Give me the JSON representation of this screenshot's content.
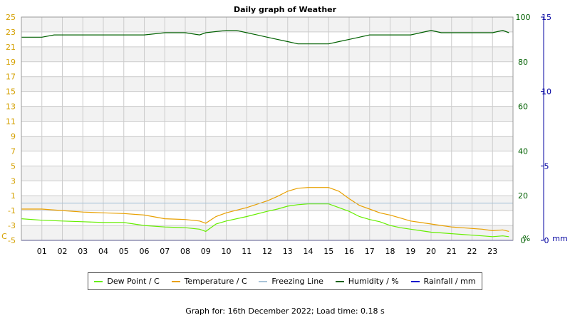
{
  "chart_data": {
    "type": "line",
    "title": "Daily graph of Weather",
    "x_tick_labels": [
      "01",
      "02",
      "03",
      "04",
      "05",
      "06",
      "07",
      "08",
      "09",
      "10",
      "11",
      "12",
      "13",
      "14",
      "15",
      "16",
      "17",
      "18",
      "19",
      "20",
      "21",
      "22",
      "23"
    ],
    "x_range_hours": [
      0,
      24
    ],
    "left_axis": {
      "unit": "C",
      "ticks": [
        -5,
        -3,
        -1,
        1,
        3,
        5,
        7,
        9,
        11,
        13,
        15,
        17,
        19,
        21,
        23,
        25
      ],
      "range": [
        -5,
        25
      ],
      "color": "#d4a000"
    },
    "humidity_axis": {
      "unit": "%",
      "ticks": [
        0,
        20,
        40,
        60,
        80,
        100
      ],
      "range": [
        0,
        100
      ],
      "color": "#006000"
    },
    "rain_axis": {
      "unit": "mm",
      "ticks": [
        0,
        5,
        10,
        15
      ],
      "range": [
        0,
        15
      ],
      "color": "#0000a0"
    },
    "grid": true,
    "legend_position": "bottom",
    "series": [
      {
        "name": "Dew Point / C",
        "color": "#66ee00",
        "axis": "left",
        "points": [
          [
            0,
            -2.1
          ],
          [
            1,
            -2.3
          ],
          [
            2,
            -2.4
          ],
          [
            3,
            -2.5
          ],
          [
            4,
            -2.6
          ],
          [
            5,
            -2.6
          ],
          [
            6,
            -3.0
          ],
          [
            7,
            -3.2
          ],
          [
            8,
            -3.3
          ],
          [
            8.7,
            -3.5
          ],
          [
            9,
            -3.8
          ],
          [
            9.5,
            -2.8
          ],
          [
            10,
            -2.4
          ],
          [
            11,
            -1.8
          ],
          [
            12,
            -1.1
          ],
          [
            12.5,
            -0.8
          ],
          [
            13,
            -0.4
          ],
          [
            13.5,
            -0.2
          ],
          [
            14,
            -0.1
          ],
          [
            15,
            -0.1
          ],
          [
            15.5,
            -0.6
          ],
          [
            16,
            -1.1
          ],
          [
            16.5,
            -1.8
          ],
          [
            17,
            -2.2
          ],
          [
            17.5,
            -2.5
          ],
          [
            18,
            -3.0
          ],
          [
            18.5,
            -3.3
          ],
          [
            19,
            -3.5
          ],
          [
            19.5,
            -3.7
          ],
          [
            20,
            -3.9
          ],
          [
            20.5,
            -4.0
          ],
          [
            21,
            -4.1
          ],
          [
            21.5,
            -4.2
          ],
          [
            22,
            -4.3
          ],
          [
            22.5,
            -4.4
          ],
          [
            23,
            -4.5
          ],
          [
            23.5,
            -4.4
          ],
          [
            23.8,
            -4.5
          ]
        ]
      },
      {
        "name": "Temperature / C",
        "color": "#e8a000",
        "axis": "left",
        "points": [
          [
            0,
            -0.8
          ],
          [
            1,
            -0.8
          ],
          [
            2,
            -1.0
          ],
          [
            3,
            -1.2
          ],
          [
            4,
            -1.3
          ],
          [
            5,
            -1.4
          ],
          [
            6,
            -1.6
          ],
          [
            7,
            -2.1
          ],
          [
            8,
            -2.2
          ],
          [
            8.7,
            -2.4
          ],
          [
            9,
            -2.7
          ],
          [
            9.5,
            -1.8
          ],
          [
            10,
            -1.3
          ],
          [
            11,
            -0.6
          ],
          [
            12,
            0.3
          ],
          [
            12.5,
            0.9
          ],
          [
            13,
            1.6
          ],
          [
            13.5,
            2.0
          ],
          [
            14,
            2.1
          ],
          [
            15,
            2.1
          ],
          [
            15.5,
            1.6
          ],
          [
            16,
            0.6
          ],
          [
            16.5,
            -0.3
          ],
          [
            17,
            -0.8
          ],
          [
            17.5,
            -1.3
          ],
          [
            18,
            -1.6
          ],
          [
            18.5,
            -2.0
          ],
          [
            19,
            -2.4
          ],
          [
            19.5,
            -2.6
          ],
          [
            20,
            -2.8
          ],
          [
            20.5,
            -3.0
          ],
          [
            21,
            -3.2
          ],
          [
            21.5,
            -3.3
          ],
          [
            22,
            -3.4
          ],
          [
            22.5,
            -3.5
          ],
          [
            23,
            -3.7
          ],
          [
            23.5,
            -3.6
          ],
          [
            23.8,
            -3.8
          ]
        ]
      },
      {
        "name": "Freezing Line",
        "color": "#a9c4d8",
        "axis": "left",
        "points": [
          [
            0,
            0
          ],
          [
            24,
            0
          ]
        ]
      },
      {
        "name": "Humidity / %",
        "color": "#006000",
        "axis": "humidity",
        "points": [
          [
            0,
            91
          ],
          [
            0.5,
            91
          ],
          [
            1,
            91
          ],
          [
            1.6,
            92
          ],
          [
            3,
            92
          ],
          [
            4,
            92
          ],
          [
            5,
            92
          ],
          [
            5.5,
            92
          ],
          [
            6,
            92
          ],
          [
            7,
            93
          ],
          [
            8,
            93
          ],
          [
            8.7,
            92
          ],
          [
            9,
            93
          ],
          [
            10,
            94
          ],
          [
            10.5,
            94
          ],
          [
            11,
            93
          ],
          [
            11.5,
            92
          ],
          [
            12,
            91
          ],
          [
            12.5,
            90
          ],
          [
            13,
            89
          ],
          [
            13.5,
            88
          ],
          [
            14,
            88
          ],
          [
            15,
            88
          ],
          [
            15.5,
            89
          ],
          [
            16,
            90
          ],
          [
            16.5,
            91
          ],
          [
            17,
            92
          ],
          [
            18,
            92
          ],
          [
            19,
            92
          ],
          [
            19.5,
            93
          ],
          [
            20,
            94
          ],
          [
            20.5,
            93
          ],
          [
            21,
            93
          ],
          [
            21.5,
            93
          ],
          [
            22,
            93
          ],
          [
            22.5,
            93
          ],
          [
            23,
            93
          ],
          [
            23.5,
            94
          ],
          [
            23.8,
            93
          ]
        ]
      },
      {
        "name": "Rainfall / mm",
        "color": "#0000cc",
        "axis": "rain",
        "points": [
          [
            0,
            0
          ],
          [
            24,
            0
          ]
        ]
      }
    ]
  },
  "footer": "Graph for: 16th December 2022; Load time: 0.18 s",
  "colors": {
    "gridline": "#cccccc",
    "band": "#f2f2f2",
    "plot_border": "#999999"
  }
}
